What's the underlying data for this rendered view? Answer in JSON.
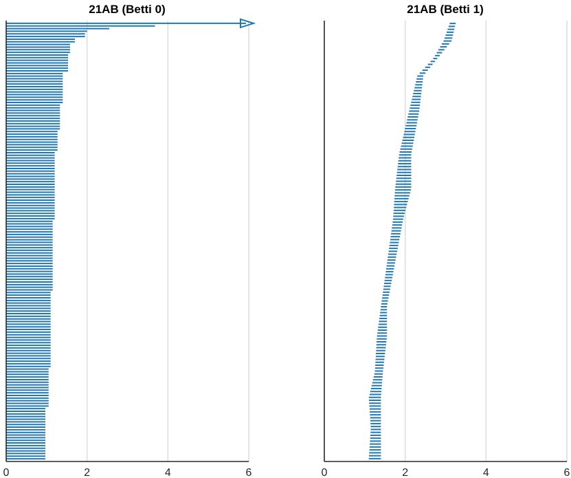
{
  "chart_data": [
    {
      "type": "barcode",
      "title": "21AB (Betti 0)",
      "xlim": [
        0,
        6
      ],
      "xticks": [
        0,
        2,
        4,
        6
      ],
      "grid": "vertical",
      "color": "#1f77b4",
      "infinite_bar": {
        "birth": 0,
        "label": "persists to infinity (arrow)"
      },
      "groups": [
        {
          "death": 3.68,
          "count": 1
        },
        {
          "death": 2.55,
          "count": 1
        },
        {
          "death": 2.0,
          "count": 1
        },
        {
          "death": 1.95,
          "count": 2
        },
        {
          "death": 1.7,
          "count": 2
        },
        {
          "death": 1.58,
          "count": 4
        },
        {
          "death": 1.53,
          "count": 7
        },
        {
          "death": 1.4,
          "count": 12
        },
        {
          "death": 1.33,
          "count": 10
        },
        {
          "death": 1.27,
          "count": 8
        },
        {
          "death": 1.2,
          "count": 26
        },
        {
          "death": 1.15,
          "count": 27
        },
        {
          "death": 1.1,
          "count": 29
        },
        {
          "death": 1.05,
          "count": 15
        },
        {
          "death": 0.97,
          "count": 20
        }
      ]
    },
    {
      "type": "barcode",
      "title": "21AB (Betti 1)",
      "xlim": [
        0,
        6
      ],
      "xticks": [
        0,
        2,
        4,
        6
      ],
      "grid": "vertical",
      "color": "#1f77b4",
      "anchors": [
        [
          0.0,
          3.1,
          3.25
        ],
        [
          0.04,
          2.95,
          3.15
        ],
        [
          0.08,
          2.7,
          2.8
        ],
        [
          0.12,
          2.3,
          2.45
        ],
        [
          0.2,
          2.1,
          2.35
        ],
        [
          0.3,
          1.85,
          2.15
        ],
        [
          0.38,
          1.75,
          2.15
        ],
        [
          0.45,
          1.7,
          1.95
        ],
        [
          0.55,
          1.55,
          1.75
        ],
        [
          0.65,
          1.4,
          1.55
        ],
        [
          0.72,
          1.3,
          1.55
        ],
        [
          0.8,
          1.25,
          1.45
        ],
        [
          0.86,
          1.1,
          1.4
        ],
        [
          0.93,
          1.15,
          1.4
        ],
        [
          1.0,
          1.1,
          1.4
        ]
      ],
      "count": 150
    }
  ]
}
